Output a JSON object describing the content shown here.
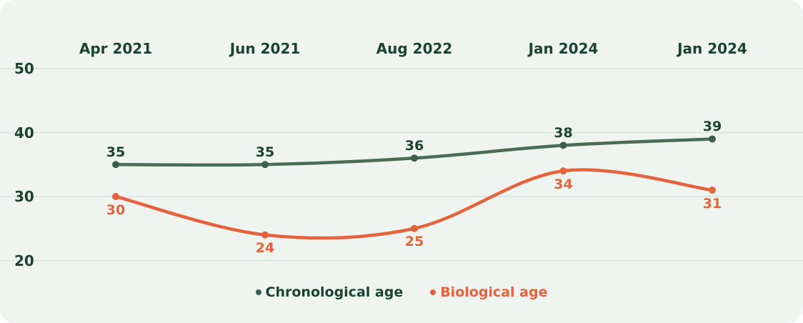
{
  "chart_data": {
    "type": "line",
    "title": "",
    "x_labels": [
      "Apr 2021",
      "Jun 2021",
      "Aug 2022",
      "Jan 2024",
      "Jan 2024"
    ],
    "y_ticks": [
      50,
      40,
      30,
      20
    ],
    "ylim": [
      20,
      50
    ],
    "grid": true,
    "legend_position": "bottom-center",
    "series": [
      {
        "name": "Chronological age",
        "values": [
          35,
          35,
          36,
          38,
          39
        ],
        "line_color": "#4a6c56",
        "marker_color": "#3a6150",
        "label_color": "#1a4430",
        "label_side": "above"
      },
      {
        "name": "Biological age",
        "values": [
          30,
          24,
          25,
          34,
          31
        ],
        "line_color": "#e5633c",
        "marker_color": "#e5633c",
        "label_color": "#e5633c",
        "label_side": "below"
      }
    ]
  },
  "colors": {
    "page_bg": "#ffffff",
    "card_bg": "#f0f4f1",
    "grid_line": "#dce6e0",
    "axis_text": "#1a4430"
  }
}
